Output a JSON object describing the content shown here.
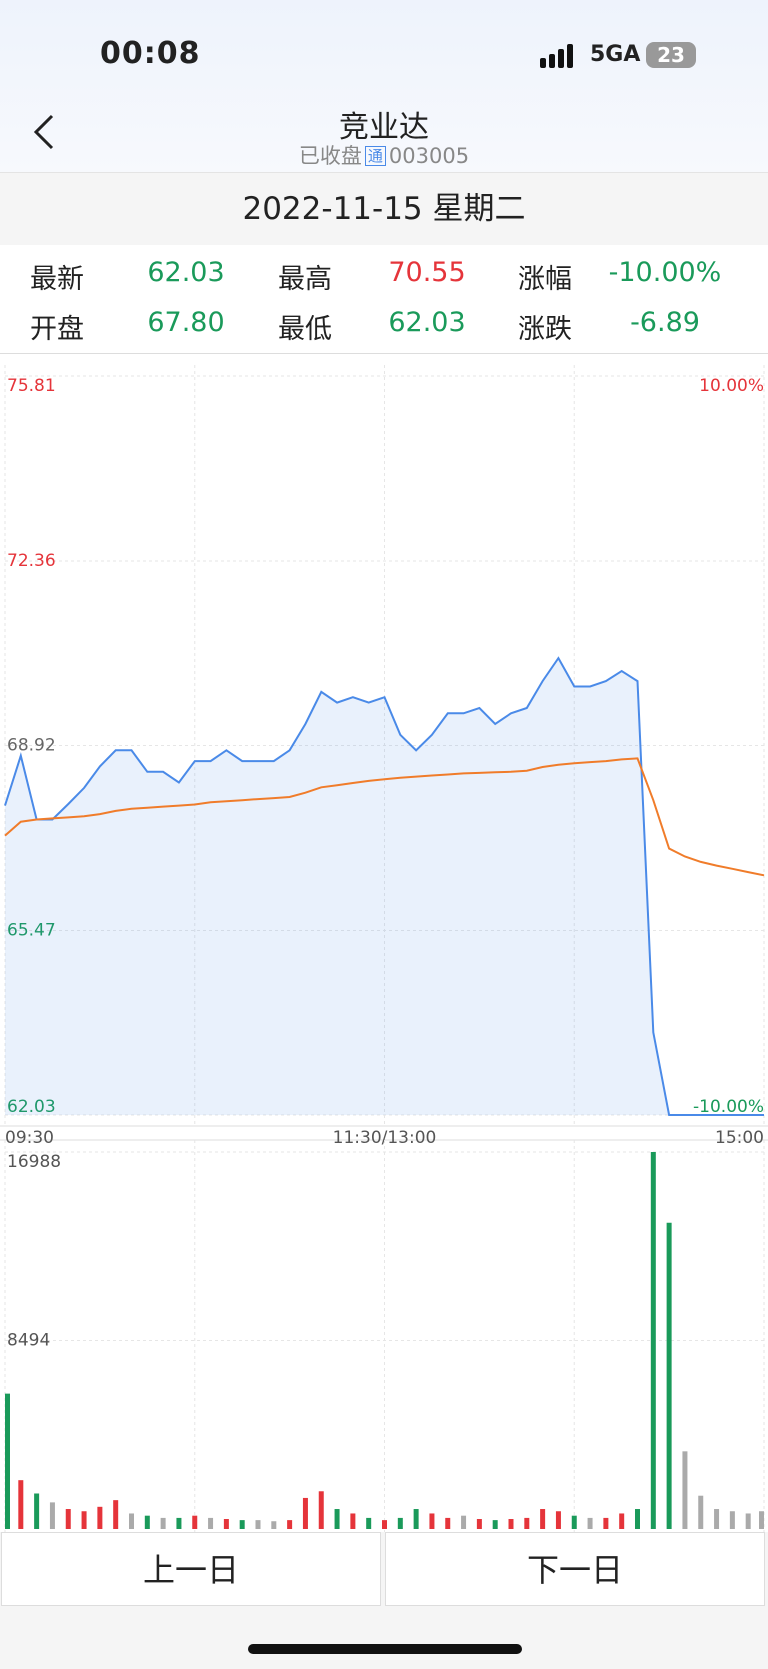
{
  "status_bar": {
    "time": "00:08",
    "network": "5GA",
    "battery": "23"
  },
  "header": {
    "title": "竞业达",
    "status": "已收盘",
    "badge": "通",
    "code": "003005"
  },
  "date": "2022-11-15 星期二",
  "quote": [
    {
      "label": "最新",
      "value": "62.03",
      "color": "#1a9a5a"
    },
    {
      "label": "最高",
      "value": "70.55",
      "color": "#e5343a"
    },
    {
      "label": "涨幅",
      "value": "-10.00%",
      "color": "#1a9a5a"
    },
    {
      "label": "开盘",
      "value": "67.80",
      "color": "#1a9a5a"
    },
    {
      "label": "最低",
      "value": "62.03",
      "color": "#1a9a5a"
    },
    {
      "label": "涨跌",
      "value": "-6.89",
      "color": "#1a9a5a"
    }
  ],
  "chart_data": [
    {
      "type": "line",
      "x": [
        0,
        5,
        10,
        15,
        20,
        25,
        30,
        35,
        40,
        45,
        50,
        55,
        60,
        65,
        70,
        75,
        80,
        85,
        90,
        95,
        100,
        105,
        110,
        115,
        120,
        125,
        130,
        135,
        140,
        145,
        150,
        155,
        160,
        165,
        170,
        175,
        180,
        185,
        190,
        195,
        200,
        205,
        210,
        215,
        220,
        225,
        230,
        235,
        240
      ],
      "series": [
        {
          "color": "#4a8ae8",
          "values": [
            67.8,
            68.73,
            67.54,
            67.54,
            67.83,
            68.13,
            68.53,
            68.83,
            68.83,
            68.43,
            68.43,
            68.23,
            68.63,
            68.63,
            68.83,
            68.63,
            68.63,
            68.63,
            68.83,
            69.32,
            69.92,
            69.72,
            69.82,
            69.72,
            69.82,
            69.12,
            68.83,
            69.12,
            69.52,
            69.52,
            69.62,
            69.32,
            69.52,
            69.62,
            70.12,
            70.55,
            70.02,
            70.02,
            70.12,
            70.31,
            70.12,
            63.57,
            62.03,
            62.03,
            62.03,
            62.03,
            62.03,
            62.03,
            62.03
          ]
        },
        {
          "color": "#f07c2a",
          "values": [
            67.24,
            67.5,
            67.54,
            67.56,
            67.58,
            67.6,
            67.64,
            67.7,
            67.74,
            67.76,
            67.78,
            67.8,
            67.82,
            67.86,
            67.88,
            67.9,
            67.92,
            67.94,
            67.96,
            68.04,
            68.14,
            68.18,
            68.22,
            68.26,
            68.29,
            68.32,
            68.34,
            68.36,
            68.38,
            68.4,
            68.41,
            68.42,
            68.43,
            68.45,
            68.52,
            68.56,
            68.59,
            68.61,
            68.63,
            68.66,
            68.68,
            67.9,
            67.0,
            66.85,
            66.75,
            66.68,
            66.62,
            66.56,
            66.5
          ]
        }
      ],
      "xlim": [
        0,
        240
      ],
      "xticks": [
        {
          "value": 0,
          "label": "09:30"
        },
        {
          "value": 60,
          "label": null
        },
        {
          "value": 120,
          "label": "11:30/13:00"
        },
        {
          "value": 180,
          "label": null
        },
        {
          "value": 240,
          "label": "15:00"
        }
      ],
      "ylim": [
        62.03,
        75.81
      ],
      "yticks": [
        75.81,
        72.36,
        68.92,
        65.47,
        62.03
      ],
      "y2lim": [
        -10,
        10
      ],
      "y2ticks": [
        {
          "value": 10,
          "label": "10.00%"
        },
        {
          "value": -10,
          "label": "-10.00%"
        }
      ],
      "grid": true
    },
    {
      "type": "bar",
      "x": [
        0,
        5,
        10,
        15,
        20,
        25,
        30,
        35,
        40,
        45,
        50,
        55,
        60,
        65,
        70,
        75,
        80,
        85,
        90,
        95,
        100,
        105,
        110,
        115,
        120,
        125,
        130,
        135,
        140,
        145,
        150,
        155,
        160,
        165,
        170,
        175,
        180,
        185,
        190,
        195,
        200,
        205,
        210,
        215,
        220,
        225,
        230,
        235,
        240
      ],
      "values": [
        6100,
        2200,
        1600,
        1200,
        900,
        800,
        1000,
        1300,
        700,
        600,
        500,
        500,
        600,
        500,
        450,
        400,
        400,
        350,
        400,
        1400,
        1700,
        900,
        700,
        500,
        400,
        500,
        900,
        700,
        500,
        600,
        450,
        400,
        450,
        500,
        900,
        800,
        600,
        500,
        500,
        700,
        900,
        16988,
        13800,
        3500,
        1500,
        900,
        800,
        700,
        800
      ],
      "xlim": [
        0,
        240
      ],
      "ylim": [
        0,
        16988
      ],
      "yticks": [
        8494,
        16988
      ],
      "grid": true
    }
  ],
  "buttons": [
    "上一日",
    "下一日"
  ]
}
